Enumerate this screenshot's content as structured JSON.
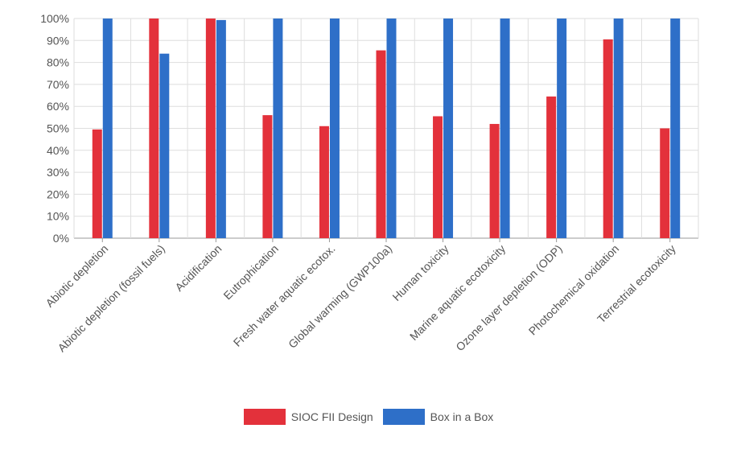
{
  "chart_data": {
    "type": "bar",
    "title": "",
    "xlabel": "",
    "ylabel": "",
    "ylim": [
      0,
      100
    ],
    "y_tick_values": [
      0,
      10,
      20,
      30,
      40,
      50,
      60,
      70,
      80,
      90,
      100
    ],
    "y_tick_labels": [
      "0%",
      "10%",
      "20%",
      "30%",
      "40%",
      "50%",
      "60%",
      "70%",
      "80%",
      "90%",
      "100%"
    ],
    "grid": true,
    "legend_position": "bottom",
    "categories": [
      "Abiotic depletion",
      "Abiotic depletion (fossil fuels)",
      "Acidification",
      "Eutrophication",
      "Fresh water aquatic ecotox.",
      "Global warming (GWP100a)",
      "Human toxicity",
      "Marine aquatic ecotoxicity",
      "Ozone layer depletion (ODP)",
      "Photochemical oxidation",
      "Terrestrial ecotoxicity"
    ],
    "series": [
      {
        "name": "SIOC FII Design",
        "color": "#e3313b",
        "values": [
          49.5,
          100,
          100,
          56,
          51,
          85.5,
          55.5,
          52,
          64.5,
          90.5,
          50
        ]
      },
      {
        "name": "Box in a Box",
        "color": "#2e6fc8",
        "values": [
          100,
          84,
          99.3,
          100,
          100,
          100,
          100,
          100,
          100,
          100,
          100
        ]
      }
    ]
  }
}
